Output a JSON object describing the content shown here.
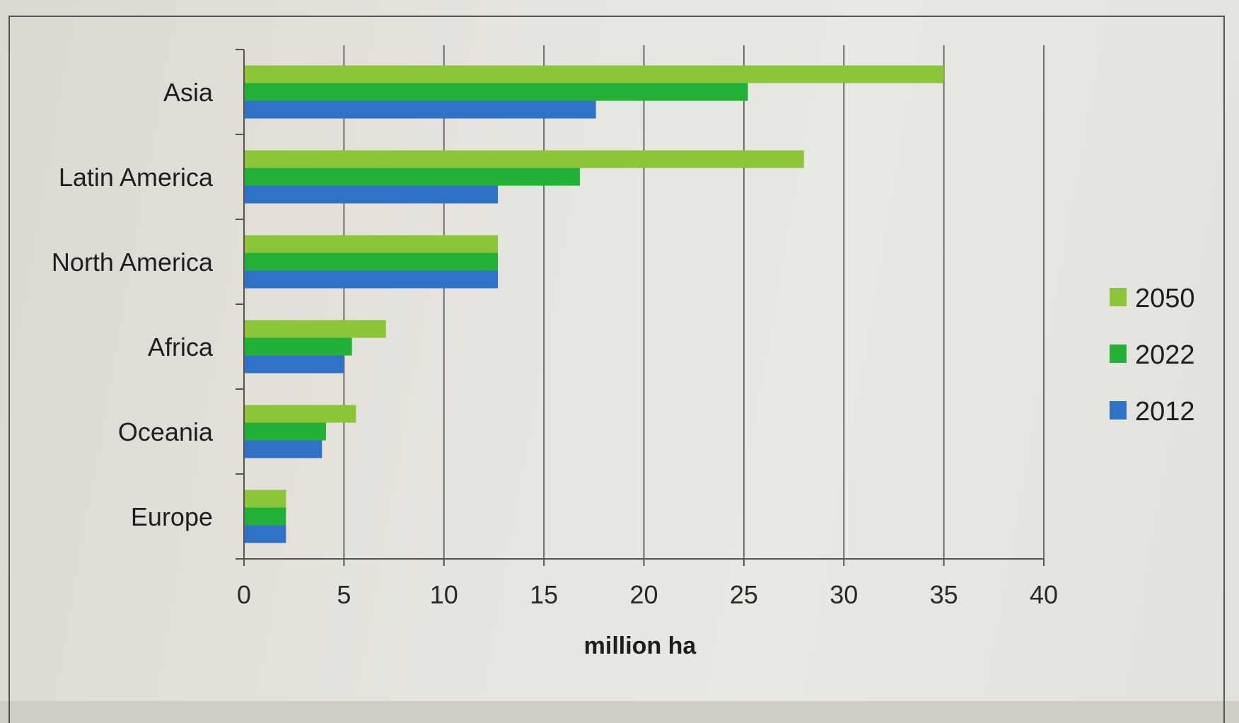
{
  "chart_data": {
    "type": "bar",
    "orientation": "horizontal",
    "categories": [
      "Asia",
      "Latin America",
      "North America",
      "Africa",
      "Oceania",
      "Europe"
    ],
    "series": [
      {
        "name": "2050",
        "color": "#8cc43a",
        "values": [
          35,
          28,
          12.7,
          7.1,
          5.6,
          2.1
        ]
      },
      {
        "name": "2022",
        "color": "#22b037",
        "values": [
          25.2,
          16.8,
          12.7,
          5.4,
          4.1,
          2.1
        ]
      },
      {
        "name": "2012",
        "color": "#2e73c6",
        "values": [
          17.6,
          12.7,
          12.7,
          5,
          3.9,
          2.1
        ]
      }
    ],
    "xlabel": "million ha",
    "xlim": [
      0,
      40
    ],
    "xticks": [
      "0",
      "5",
      "10",
      "15",
      "20",
      "25",
      "30",
      "35",
      "40"
    ],
    "grid": "vertical",
    "legend": "right",
    "legend_items": [
      "2050",
      "2022",
      "2012"
    ]
  }
}
